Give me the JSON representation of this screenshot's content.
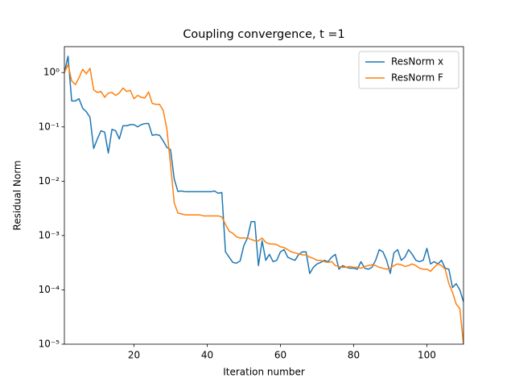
{
  "chart_data": {
    "type": "line",
    "title": "Coupling convergence, t =1",
    "x_label": "Iteration number",
    "y_label": "Residual Norm",
    "yscale": "log",
    "legend": "upper right",
    "xlim": [
      1,
      110
    ],
    "xticks": [
      20,
      40,
      60,
      80,
      100
    ],
    "ylim": [
      1e-05,
      3
    ],
    "yticks": [
      {
        "value": 1e-05,
        "label": "10⁻⁵"
      },
      {
        "value": 0.0001,
        "label": "10⁻⁴"
      },
      {
        "value": 0.001,
        "label": "10⁻³"
      },
      {
        "value": 0.01,
        "label": "10⁻²"
      },
      {
        "value": 0.1,
        "label": "10⁻¹"
      },
      {
        "value": 1,
        "label": "10⁰"
      }
    ],
    "x": [
      1,
      2,
      3,
      4,
      5,
      6,
      7,
      8,
      9,
      10,
      11,
      12,
      13,
      14,
      15,
      16,
      17,
      18,
      19,
      20,
      21,
      22,
      23,
      24,
      25,
      26,
      27,
      28,
      29,
      30,
      31,
      32,
      33,
      34,
      35,
      36,
      37,
      38,
      39,
      40,
      41,
      42,
      43,
      44,
      45,
      46,
      47,
      48,
      49,
      50,
      51,
      52,
      53,
      54,
      55,
      56,
      57,
      58,
      59,
      60,
      61,
      62,
      63,
      64,
      65,
      66,
      67,
      68,
      69,
      70,
      71,
      72,
      73,
      74,
      75,
      76,
      77,
      78,
      79,
      80,
      81,
      82,
      83,
      84,
      85,
      86,
      87,
      88,
      89,
      90,
      91,
      92,
      93,
      94,
      95,
      96,
      97,
      98,
      99,
      100,
      101,
      102,
      103,
      104,
      105,
      106,
      107,
      108,
      109,
      110
    ],
    "series": [
      {
        "name": "ResNorm x",
        "color": "#1f77b4",
        "values": [
          1.0,
          2.0,
          0.3,
          0.3,
          0.33,
          0.22,
          0.19,
          0.15,
          0.04,
          0.06,
          0.085,
          0.08,
          0.033,
          0.09,
          0.085,
          0.06,
          0.105,
          0.105,
          0.11,
          0.11,
          0.1,
          0.11,
          0.115,
          0.115,
          0.07,
          0.072,
          0.07,
          0.055,
          0.042,
          0.038,
          0.011,
          0.0065,
          0.0066,
          0.0064,
          0.0064,
          0.0064,
          0.0064,
          0.0064,
          0.0064,
          0.0064,
          0.0064,
          0.0066,
          0.006,
          0.0062,
          0.0005,
          0.0004,
          0.00032,
          0.00031,
          0.00034,
          0.00065,
          0.0009,
          0.0018,
          0.0018,
          0.00028,
          0.0008,
          0.00035,
          0.00045,
          0.00033,
          0.00035,
          0.0005,
          0.00055,
          0.0004,
          0.00037,
          0.00035,
          0.00045,
          0.0005,
          0.0005,
          0.0002,
          0.00026,
          0.0003,
          0.00032,
          0.00035,
          0.00033,
          0.0004,
          0.00045,
          0.00024,
          0.00028,
          0.00026,
          0.00025,
          0.00025,
          0.00024,
          0.00033,
          0.00025,
          0.00024,
          0.00026,
          0.00035,
          0.00055,
          0.0005,
          0.00035,
          0.0002,
          0.00048,
          0.00055,
          0.00035,
          0.0004,
          0.00055,
          0.00045,
          0.00035,
          0.00033,
          0.00035,
          0.00058,
          0.0003,
          0.00033,
          0.0003,
          0.00035,
          0.00025,
          0.00024,
          0.00011,
          0.00013,
          0.0001,
          6e-05
        ]
      },
      {
        "name": "ResNorm F",
        "color": "#ff7f0e",
        "values": [
          1.0,
          1.4,
          0.7,
          0.6,
          0.8,
          1.15,
          0.95,
          1.2,
          0.48,
          0.43,
          0.45,
          0.35,
          0.42,
          0.43,
          0.38,
          0.42,
          0.52,
          0.45,
          0.47,
          0.33,
          0.38,
          0.35,
          0.34,
          0.44,
          0.27,
          0.26,
          0.26,
          0.2,
          0.09,
          0.02,
          0.004,
          0.0026,
          0.0025,
          0.0024,
          0.0024,
          0.0024,
          0.0024,
          0.0024,
          0.0023,
          0.0023,
          0.0023,
          0.0023,
          0.0023,
          0.0022,
          0.0016,
          0.0012,
          0.0011,
          0.00095,
          0.0009,
          0.0009,
          0.0009,
          0.00085,
          0.0008,
          0.0008,
          0.0009,
          0.00075,
          0.0007,
          0.0007,
          0.00068,
          0.00062,
          0.0006,
          0.00055,
          0.0005,
          0.00048,
          0.00046,
          0.00044,
          0.00044,
          0.0004,
          0.00038,
          0.00035,
          0.00035,
          0.00033,
          0.00032,
          0.00033,
          0.00028,
          0.00027,
          0.00026,
          0.00026,
          0.00027,
          0.00026,
          0.00026,
          0.00025,
          0.00027,
          0.00028,
          0.00029,
          0.00028,
          0.00026,
          0.00025,
          0.00024,
          0.00025,
          0.00028,
          0.0003,
          0.00029,
          0.00027,
          0.00028,
          0.0003,
          0.00028,
          0.00025,
          0.00024,
          0.00024,
          0.00022,
          0.00026,
          0.0003,
          0.00028,
          0.00024,
          0.00013,
          9e-05,
          5.5e-05,
          4.5e-05,
          1e-05
        ]
      }
    ]
  }
}
